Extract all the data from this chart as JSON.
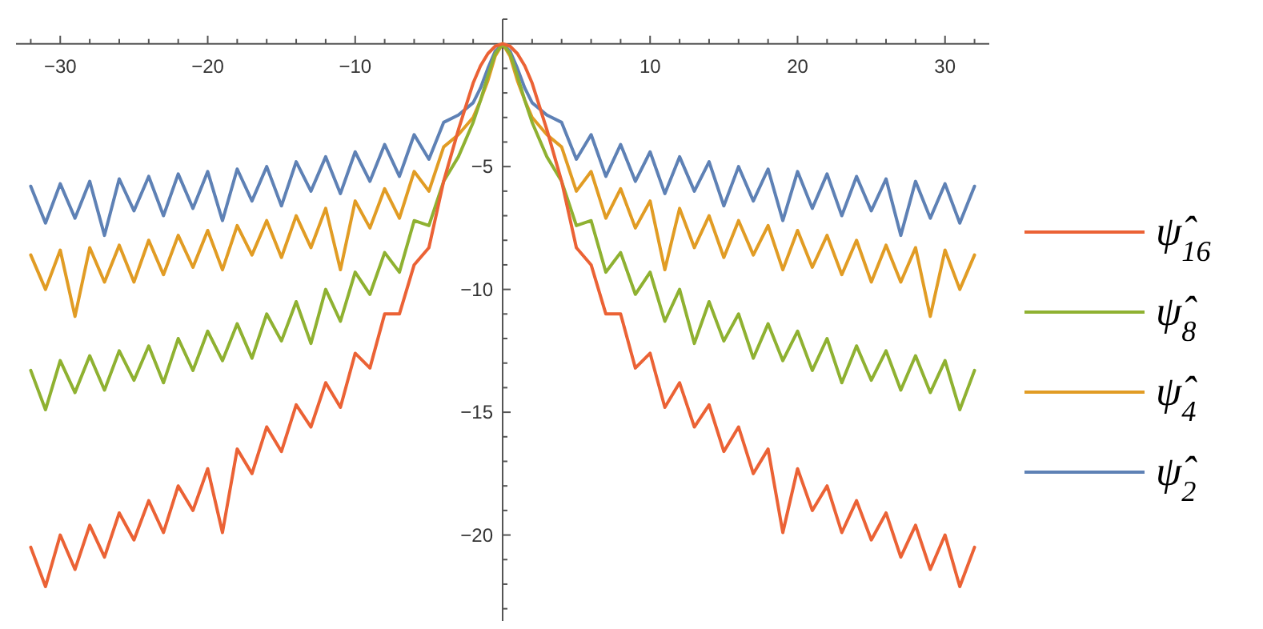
{
  "chart_data": {
    "type": "line",
    "x": [
      -32,
      -31,
      -30,
      -29,
      -28,
      -27,
      -26,
      -25,
      -24,
      -23,
      -22,
      -21,
      -20,
      -19,
      -18,
      -17,
      -16,
      -15,
      -14,
      -13,
      -12,
      -11,
      -10,
      -9,
      -8,
      -7,
      -6,
      -5,
      -4,
      -3,
      -2,
      -1.5,
      -1,
      -0.5,
      0,
      0.5,
      1,
      1.5,
      2,
      3,
      4,
      5,
      6,
      7,
      8,
      9,
      10,
      11,
      12,
      13,
      14,
      15,
      16,
      17,
      18,
      19,
      20,
      21,
      22,
      23,
      24,
      25,
      26,
      27,
      28,
      29,
      30,
      31,
      32
    ],
    "series": [
      {
        "name": "ψ̂$_{16}$",
        "color": "#eb6235",
        "values": [
          -20.5,
          -22.1,
          -20.0,
          -21.4,
          -19.6,
          -20.9,
          -19.1,
          -20.2,
          -18.6,
          -19.9,
          -18.0,
          -19.0,
          -17.3,
          -19.9,
          -16.5,
          -17.5,
          -15.6,
          -16.6,
          -14.7,
          -15.6,
          -13.8,
          -14.8,
          -12.6,
          -13.2,
          -11.0,
          -11.0,
          -9.0,
          -8.3,
          -5.6,
          -3.5,
          -1.6,
          -0.9,
          -0.4,
          -0.1,
          0,
          -0.1,
          -0.4,
          -0.9,
          -1.6,
          -3.5,
          -5.6,
          -8.3,
          -9.0,
          -11.0,
          -11.0,
          -13.2,
          -12.6,
          -14.8,
          -13.8,
          -15.6,
          -14.7,
          -16.6,
          -15.6,
          -17.5,
          -16.5,
          -19.9,
          -17.3,
          -19.0,
          -18.0,
          -19.9,
          -18.6,
          -20.2,
          -19.1,
          -20.9,
          -19.6,
          -21.4,
          -20.0,
          -22.1,
          -20.5
        ]
      },
      {
        "name": "ψ̂$_{8}$",
        "color": "#8fb131",
        "values": [
          -13.3,
          -14.9,
          -12.9,
          -14.2,
          -12.7,
          -14.1,
          -12.5,
          -13.7,
          -12.3,
          -13.8,
          -12.0,
          -13.3,
          -11.7,
          -12.9,
          -11.4,
          -12.8,
          -11.0,
          -12.1,
          -10.5,
          -12.2,
          -10.0,
          -11.3,
          -9.3,
          -10.2,
          -8.5,
          -9.3,
          -7.2,
          -7.4,
          -5.6,
          -4.6,
          -3.2,
          -2.3,
          -1.3,
          -0.4,
          0,
          -0.4,
          -1.3,
          -2.3,
          -3.2,
          -4.6,
          -5.6,
          -7.4,
          -7.2,
          -9.3,
          -8.5,
          -10.2,
          -9.3,
          -11.3,
          -10.0,
          -12.2,
          -10.5,
          -12.1,
          -11.0,
          -12.8,
          -11.4,
          -12.9,
          -11.7,
          -13.3,
          -12.0,
          -13.8,
          -12.3,
          -13.7,
          -12.5,
          -14.1,
          -12.7,
          -14.2,
          -12.9,
          -14.9,
          -13.3
        ]
      },
      {
        "name": "ψ̂$_{4}$",
        "color": "#e19c24",
        "values": [
          -8.6,
          -10.0,
          -8.4,
          -11.1,
          -8.3,
          -9.7,
          -8.2,
          -9.7,
          -8.0,
          -9.4,
          -7.8,
          -9.1,
          -7.6,
          -9.2,
          -7.4,
          -8.6,
          -7.2,
          -8.7,
          -7.0,
          -8.3,
          -6.7,
          -9.2,
          -6.4,
          -7.5,
          -5.9,
          -7.1,
          -5.2,
          -6.0,
          -4.2,
          -3.7,
          -3.0,
          -2.3,
          -1.5,
          -0.5,
          0,
          -0.5,
          -1.5,
          -2.3,
          -3.0,
          -3.7,
          -4.2,
          -6.0,
          -5.2,
          -7.1,
          -5.9,
          -7.5,
          -6.4,
          -9.2,
          -6.7,
          -8.3,
          -7.0,
          -8.7,
          -7.2,
          -8.6,
          -7.4,
          -9.2,
          -7.6,
          -9.1,
          -7.8,
          -9.4,
          -8.0,
          -9.7,
          -8.2,
          -9.7,
          -8.3,
          -11.1,
          -8.4,
          -10.0,
          -8.6
        ]
      },
      {
        "name": "ψ̂$_{2}$",
        "color": "#5e81b5",
        "values": [
          -5.8,
          -7.3,
          -5.7,
          -7.1,
          -5.6,
          -7.8,
          -5.5,
          -6.8,
          -5.4,
          -7.0,
          -5.3,
          -6.7,
          -5.2,
          -7.2,
          -5.1,
          -6.4,
          -5.0,
          -6.6,
          -4.8,
          -6.0,
          -4.6,
          -6.1,
          -4.4,
          -5.6,
          -4.1,
          -5.4,
          -3.7,
          -4.7,
          -3.2,
          -2.9,
          -2.4,
          -1.8,
          -1.0,
          -0.3,
          0,
          -0.3,
          -1.0,
          -1.8,
          -2.4,
          -2.9,
          -3.2,
          -4.7,
          -3.7,
          -5.4,
          -4.1,
          -5.6,
          -4.4,
          -6.1,
          -4.6,
          -6.0,
          -4.8,
          -6.6,
          -5.0,
          -6.4,
          -5.1,
          -7.2,
          -5.2,
          -6.7,
          -5.3,
          -7.0,
          -5.4,
          -6.8,
          -5.5,
          -7.8,
          -5.6,
          -7.1,
          -5.7,
          -7.3,
          -5.8
        ]
      }
    ],
    "xlim": [
      -33,
      33
    ],
    "ylim": [
      -23.5,
      1
    ],
    "xticks": [
      {
        "value": -32,
        "label": null
      },
      -30,
      {
        "value": -28,
        "label": null
      },
      {
        "value": -26,
        "label": null
      },
      {
        "value": -24,
        "label": null
      },
      {
        "value": -22,
        "label": null
      },
      -20,
      {
        "value": -18,
        "label": null
      },
      {
        "value": -16,
        "label": null
      },
      {
        "value": -14,
        "label": null
      },
      {
        "value": -12,
        "label": null
      },
      -10,
      {
        "value": -8,
        "label": null
      },
      {
        "value": -6,
        "label": null
      },
      {
        "value": -4,
        "label": null
      },
      {
        "value": -2,
        "label": null
      },
      {
        "value": 2,
        "label": null
      },
      {
        "value": 4,
        "label": null
      },
      {
        "value": 6,
        "label": null
      },
      {
        "value": 8,
        "label": null
      },
      10,
      {
        "value": 12,
        "label": null
      },
      {
        "value": 14,
        "label": null
      },
      {
        "value": 16,
        "label": null
      },
      {
        "value": 18,
        "label": null
      },
      20,
      {
        "value": 22,
        "label": null
      },
      {
        "value": 24,
        "label": null
      },
      {
        "value": 26,
        "label": null
      },
      {
        "value": 28,
        "label": null
      },
      30,
      {
        "value": 32,
        "label": null
      }
    ],
    "yticks": [
      {
        "value": 1,
        "label": null
      },
      {
        "value": -1,
        "label": null
      },
      {
        "value": -2,
        "label": null
      },
      {
        "value": -3,
        "label": null
      },
      {
        "value": -4,
        "label": null
      },
      -5,
      {
        "value": -6,
        "label": null
      },
      {
        "value": -7,
        "label": null
      },
      {
        "value": -8,
        "label": null
      },
      {
        "value": -9,
        "label": null
      },
      -10,
      {
        "value": -11,
        "label": null
      },
      {
        "value": -12,
        "label": null
      },
      {
        "value": -13,
        "label": null
      },
      {
        "value": -14,
        "label": null
      },
      -15,
      {
        "value": -16,
        "label": null
      },
      {
        "value": -17,
        "label": null
      },
      {
        "value": -18,
        "label": null
      },
      {
        "value": -19,
        "label": null
      },
      -20,
      {
        "value": -21,
        "label": null
      },
      {
        "value": -22,
        "label": null
      },
      {
        "value": -23,
        "label": null
      }
    ],
    "legend": "right",
    "marker": "none",
    "line_style": "solid"
  }
}
